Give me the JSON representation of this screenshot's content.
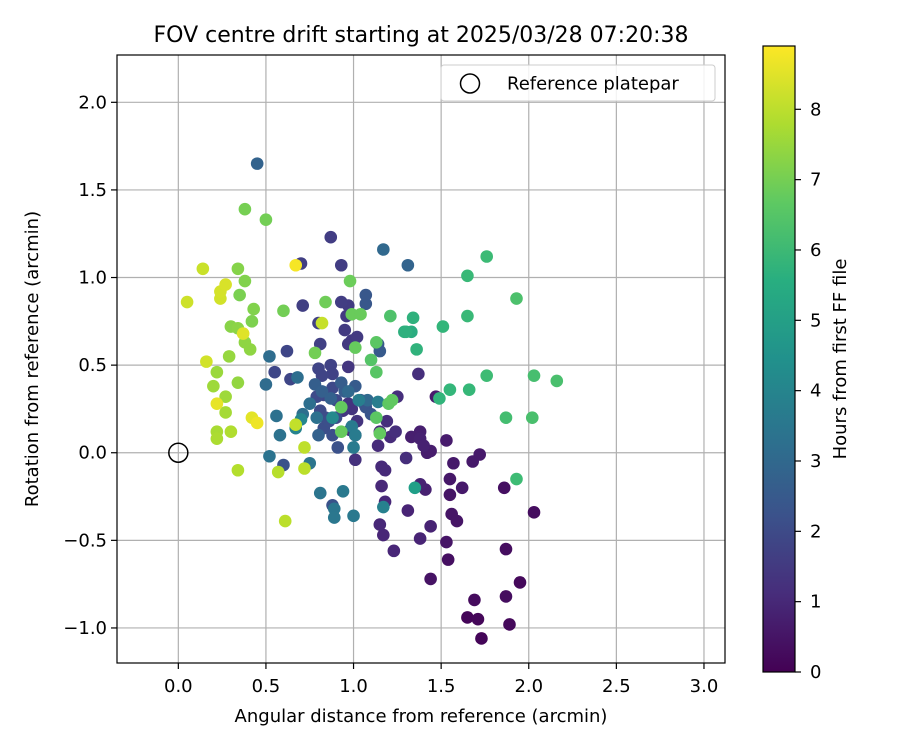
{
  "chart_data": {
    "type": "scatter",
    "title": "FOV centre drift starting at 2025/03/28 07:20:38",
    "xlabel": "Angular distance from reference (arcmin)",
    "ylabel": "Rotation from reference (arcmin)",
    "xlim": [
      -0.35,
      3.12
    ],
    "ylim": [
      -1.2,
      2.27
    ],
    "xticks": [
      0.0,
      0.5,
      1.0,
      1.5,
      2.0,
      2.5,
      3.0
    ],
    "xtick_labels": [
      "0.0",
      "0.5",
      "1.0",
      "1.5",
      "2.0",
      "2.5",
      "3.0"
    ],
    "yticks": [
      -1.0,
      -0.5,
      0.0,
      0.5,
      1.0,
      1.5,
      2.0
    ],
    "ytick_labels": [
      "−1.0",
      "−0.5",
      "0.0",
      "0.5",
      "1.0",
      "1.5",
      "2.0"
    ],
    "grid": true,
    "legend": {
      "position": "top-right",
      "entries": [
        "Reference platepar"
      ]
    },
    "reference_point": {
      "x": 0.0,
      "y": 0.0
    },
    "colorbar": {
      "label": "Hours from first FF file",
      "min": 0,
      "max": 8.9,
      "ticks": [
        0,
        1,
        2,
        3,
        4,
        5,
        6,
        7,
        8
      ],
      "tick_labels": [
        "0",
        "1",
        "2",
        "3",
        "4",
        "5",
        "6",
        "7",
        "8"
      ],
      "colormap": "viridis"
    },
    "series": [
      {
        "points": [
          [
            1.65,
            -0.94,
            0.1
          ],
          [
            1.73,
            -1.06,
            0.1
          ],
          [
            1.71,
            -0.95,
            0.15
          ],
          [
            1.89,
            -0.98,
            0.2
          ],
          [
            1.95,
            -0.74,
            0.2
          ],
          [
            1.87,
            -0.82,
            0.3
          ],
          [
            1.69,
            -0.84,
            0.25
          ],
          [
            1.87,
            -0.55,
            0.3
          ],
          [
            2.03,
            -0.34,
            0.3
          ],
          [
            1.86,
            -0.2,
            0.35
          ],
          [
            1.54,
            -0.61,
            0.35
          ],
          [
            1.44,
            -0.72,
            0.45
          ],
          [
            1.53,
            -0.51,
            0.5
          ],
          [
            1.56,
            -0.35,
            0.5
          ],
          [
            1.59,
            -0.39,
            0.5
          ],
          [
            1.55,
            -0.24,
            0.5
          ],
          [
            1.62,
            -0.2,
            0.6
          ],
          [
            1.55,
            -0.15,
            0.55
          ],
          [
            1.57,
            -0.06,
            0.6
          ],
          [
            1.68,
            -0.05,
            0.6
          ],
          [
            1.72,
            -0.01,
            0.6
          ],
          [
            1.53,
            0.07,
            0.65
          ],
          [
            1.47,
            0.32,
            0.65
          ],
          [
            1.42,
            0.0,
            0.7
          ],
          [
            1.44,
            0.01,
            0.7
          ],
          [
            1.38,
            0.12,
            0.75
          ],
          [
            1.33,
            0.09,
            0.75
          ],
          [
            1.38,
            0.08,
            0.8
          ],
          [
            1.4,
            0.04,
            0.8
          ],
          [
            1.41,
            -0.21,
            0.8
          ],
          [
            1.38,
            -0.18,
            0.85
          ],
          [
            1.44,
            -0.42,
            0.85
          ],
          [
            1.38,
            -0.49,
            0.9
          ],
          [
            1.31,
            -0.33,
            0.9
          ],
          [
            1.23,
            -0.56,
            0.95
          ],
          [
            1.17,
            -0.47,
            0.95
          ],
          [
            1.15,
            -0.41,
            1.0
          ],
          [
            1.18,
            -0.28,
            1.0
          ],
          [
            1.16,
            -0.19,
            1.0
          ],
          [
            1.16,
            -0.08,
            1.05
          ],
          [
            1.18,
            -0.1,
            1.05
          ],
          [
            1.14,
            0.04,
            1.1
          ],
          [
            1.15,
            0.12,
            1.1
          ],
          [
            1.21,
            0.09,
            1.1
          ],
          [
            1.19,
            0.18,
            1.15
          ],
          [
            1.3,
            -0.03,
            1.15
          ],
          [
            1.37,
            0.45,
            1.2
          ],
          [
            1.25,
            0.32,
            1.2
          ],
          [
            1.24,
            0.12,
            1.2
          ],
          [
            1.01,
            -0.04,
            1.25
          ],
          [
            1.01,
            0.1,
            1.25
          ],
          [
            0.98,
            0.13,
            1.3
          ],
          [
            0.99,
            0.25,
            1.35
          ],
          [
            0.97,
            0.28,
            1.35
          ],
          [
            1.02,
            0.18,
            1.35
          ],
          [
            0.94,
            0.24,
            1.4
          ],
          [
            0.97,
            0.49,
            1.4
          ],
          [
            0.97,
            0.62,
            1.45
          ],
          [
            0.99,
            0.64,
            1.45
          ],
          [
            1.02,
            0.66,
            1.5
          ],
          [
            0.95,
            0.7,
            1.5
          ],
          [
            0.96,
            0.78,
            1.5
          ],
          [
            0.97,
            0.84,
            1.55
          ],
          [
            0.93,
            0.86,
            1.6
          ],
          [
            0.93,
            1.07,
            1.6
          ],
          [
            0.87,
            1.23,
            1.6
          ],
          [
            0.7,
            1.08,
            1.65
          ],
          [
            0.71,
            0.84,
            1.65
          ],
          [
            0.81,
            0.62,
            1.7
          ],
          [
            0.8,
            0.74,
            1.7
          ],
          [
            0.87,
            0.5,
            1.75
          ],
          [
            0.88,
            0.45,
            1.75
          ],
          [
            0.82,
            0.44,
            1.8
          ],
          [
            0.8,
            0.48,
            1.8
          ],
          [
            0.62,
            0.58,
            1.85
          ],
          [
            0.64,
            0.42,
            1.85
          ],
          [
            0.55,
            0.46,
            1.9
          ],
          [
            0.83,
            0.33,
            1.9
          ],
          [
            0.9,
            0.3,
            1.95
          ],
          [
            0.88,
            0.37,
            1.95
          ],
          [
            0.79,
            0.32,
            2.0
          ],
          [
            0.81,
            0.24,
            2.0
          ],
          [
            0.84,
            0.2,
            2.05
          ],
          [
            0.9,
            0.2,
            2.05
          ],
          [
            0.83,
            0.14,
            2.1
          ],
          [
            0.86,
            0.18,
            2.15
          ],
          [
            0.88,
            0.1,
            2.15
          ],
          [
            0.91,
            0.03,
            2.2
          ],
          [
            0.6,
            -0.07,
            2.2
          ],
          [
            0.88,
            -0.3,
            2.25
          ],
          [
            1.06,
            0.28,
            2.25
          ],
          [
            1.04,
            0.3,
            2.3
          ],
          [
            1.07,
            0.26,
            2.35
          ],
          [
            1.1,
            0.22,
            2.35
          ],
          [
            1.07,
            0.85,
            2.4
          ],
          [
            1.07,
            0.9,
            2.4
          ],
          [
            1.14,
            0.62,
            2.45
          ],
          [
            1.15,
            0.58,
            2.5
          ],
          [
            1.01,
            0.38,
            2.55
          ],
          [
            0.95,
            0.35,
            2.6
          ],
          [
            0.93,
            0.4,
            2.6
          ],
          [
            0.78,
            0.39,
            2.65
          ],
          [
            0.82,
            0.35,
            2.7
          ],
          [
            0.87,
            0.31,
            2.75
          ],
          [
            0.8,
            0.1,
            2.75
          ],
          [
            0.45,
            1.65,
            2.8
          ],
          [
            1.31,
            1.07,
            2.85
          ],
          [
            1.17,
            1.16,
            3.0
          ],
          [
            0.97,
            0.35,
            3.0
          ],
          [
            1.08,
            0.3,
            3.0
          ],
          [
            0.5,
            0.39,
            3.1
          ],
          [
            0.52,
            0.55,
            3.15
          ],
          [
            0.68,
            0.43,
            3.2
          ],
          [
            0.71,
            0.22,
            3.25
          ],
          [
            0.75,
            0.28,
            3.25
          ],
          [
            0.79,
            0.2,
            3.3
          ],
          [
            0.56,
            0.21,
            3.3
          ],
          [
            0.58,
            0.1,
            3.35
          ],
          [
            0.52,
            -0.02,
            3.4
          ],
          [
            0.75,
            -0.06,
            3.45
          ],
          [
            0.81,
            -0.23,
            3.45
          ],
          [
            0.89,
            -0.32,
            3.5
          ],
          [
            0.89,
            -0.37,
            3.55
          ],
          [
            0.94,
            -0.22,
            3.6
          ],
          [
            1.0,
            -0.36,
            3.6
          ],
          [
            0.99,
            0.15,
            3.65
          ],
          [
            1.0,
            0.03,
            3.7
          ],
          [
            1.01,
            0.1,
            3.7
          ],
          [
            1.14,
            0.29,
            3.75
          ],
          [
            1.03,
            0.3,
            3.8
          ],
          [
            1.17,
            -0.31,
            3.9
          ],
          [
            0.67,
            0.14,
            4.0
          ],
          [
            0.7,
            0.19,
            4.1
          ],
          [
            0.88,
            0.2,
            4.2
          ],
          [
            1.35,
            -0.2,
            5.0
          ],
          [
            1.33,
            0.69,
            5.5
          ],
          [
            1.29,
            0.69,
            5.6
          ],
          [
            1.3,
            0.69,
            5.65
          ],
          [
            1.34,
            0.77,
            5.7
          ],
          [
            1.36,
            0.59,
            5.75
          ],
          [
            1.49,
            0.31,
            5.8
          ],
          [
            1.51,
            0.72,
            5.85
          ],
          [
            1.55,
            0.36,
            5.9
          ],
          [
            1.66,
            0.36,
            5.95
          ],
          [
            1.65,
            0.78,
            6.0
          ],
          [
            1.65,
            1.01,
            6.0
          ],
          [
            1.76,
            1.12,
            6.05
          ],
          [
            1.76,
            0.44,
            6.1
          ],
          [
            1.93,
            -0.15,
            6.1
          ],
          [
            1.87,
            0.2,
            6.2
          ],
          [
            2.03,
            0.44,
            6.25
          ],
          [
            2.02,
            0.2,
            6.3
          ],
          [
            2.16,
            0.41,
            6.3
          ],
          [
            1.93,
            0.88,
            6.35
          ],
          [
            1.21,
            0.78,
            6.4
          ],
          [
            1.1,
            0.53,
            6.5
          ],
          [
            1.13,
            0.46,
            6.55
          ],
          [
            1.13,
            0.63,
            6.6
          ],
          [
            1.13,
            0.2,
            6.6
          ],
          [
            1.2,
            0.28,
            6.65
          ],
          [
            1.22,
            0.3,
            6.7
          ],
          [
            1.15,
            0.11,
            6.75
          ],
          [
            0.93,
            0.26,
            6.75
          ],
          [
            0.93,
            0.12,
            6.8
          ],
          [
            1.01,
            0.6,
            6.8
          ],
          [
            0.99,
            0.79,
            6.85
          ],
          [
            1.04,
            0.79,
            6.85
          ],
          [
            0.98,
            0.98,
            6.9
          ],
          [
            0.84,
            0.86,
            6.95
          ],
          [
            0.78,
            0.57,
            7.0
          ],
          [
            0.6,
            0.81,
            7.0
          ],
          [
            0.5,
            1.33,
            7.0
          ],
          [
            0.38,
            1.39,
            7.05
          ],
          [
            0.35,
            0.9,
            7.1
          ],
          [
            0.42,
            0.75,
            7.15
          ],
          [
            0.43,
            0.82,
            7.2
          ],
          [
            0.38,
            0.98,
            7.2
          ],
          [
            0.34,
            1.05,
            7.25
          ],
          [
            0.3,
            0.72,
            7.3
          ],
          [
            0.34,
            0.71,
            7.35
          ],
          [
            0.38,
            0.63,
            7.4
          ],
          [
            0.41,
            0.59,
            7.4
          ],
          [
            0.34,
            0.4,
            7.45
          ],
          [
            0.29,
            0.55,
            7.5
          ],
          [
            0.22,
            0.46,
            7.55
          ],
          [
            0.2,
            0.38,
            7.6
          ],
          [
            0.27,
            0.32,
            7.6
          ],
          [
            0.27,
            0.23,
            7.7
          ],
          [
            0.22,
            0.12,
            7.75
          ],
          [
            0.22,
            0.08,
            7.8
          ],
          [
            0.3,
            0.12,
            7.85
          ],
          [
            0.34,
            -0.1,
            7.9
          ],
          [
            0.57,
            -0.11,
            7.95
          ],
          [
            0.61,
            -0.39,
            8.0
          ],
          [
            0.72,
            -0.09,
            8.0
          ],
          [
            0.72,
            0.03,
            8.05
          ],
          [
            0.67,
            0.16,
            8.1
          ],
          [
            0.82,
            0.74,
            8.15
          ],
          [
            0.14,
            1.05,
            8.2
          ],
          [
            0.05,
            0.86,
            8.25
          ],
          [
            0.16,
            0.52,
            8.3
          ],
          [
            0.24,
            0.88,
            8.3
          ],
          [
            0.24,
            0.92,
            8.35
          ],
          [
            0.27,
            0.96,
            8.4
          ],
          [
            0.37,
            0.68,
            8.5
          ],
          [
            0.42,
            0.2,
            8.55
          ],
          [
            0.22,
            0.28,
            8.6
          ],
          [
            0.45,
            0.17,
            8.7
          ],
          [
            0.67,
            1.07,
            8.8
          ]
        ]
      }
    ]
  }
}
